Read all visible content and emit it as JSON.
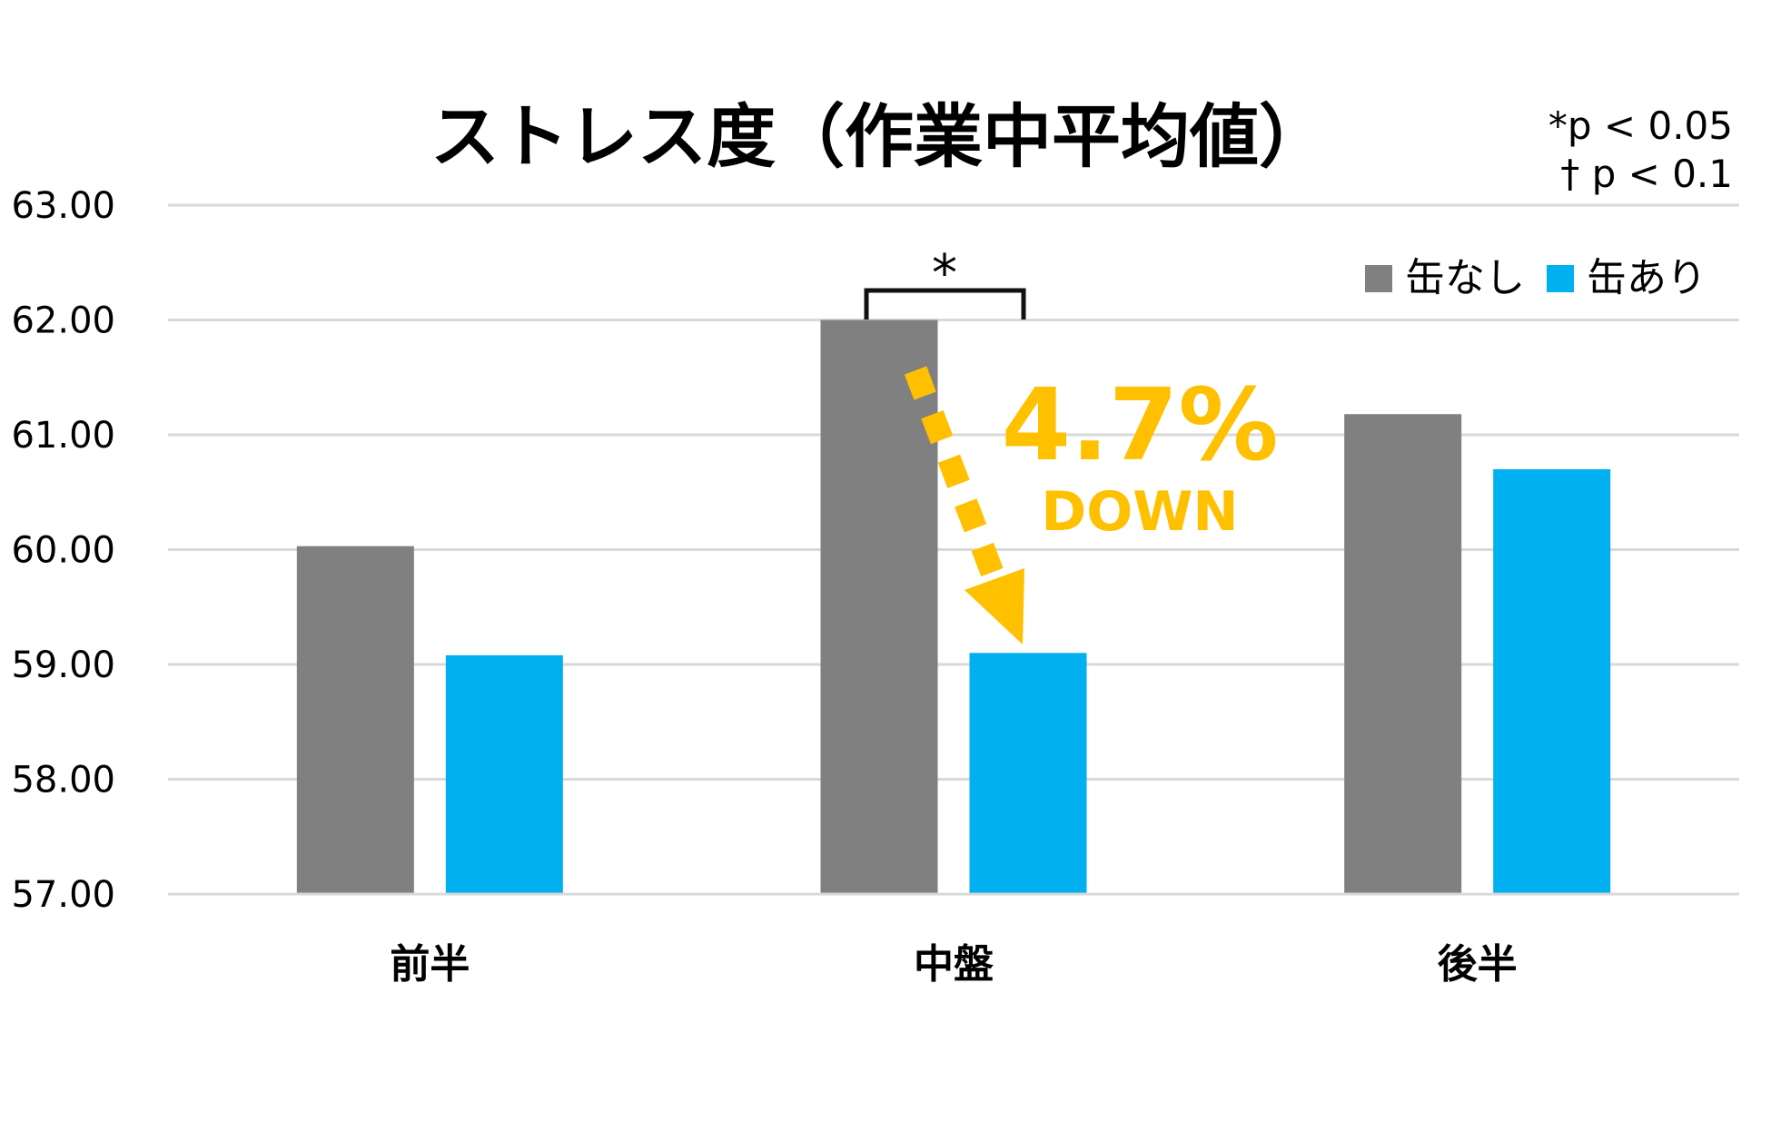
{
  "chart_data": {
    "type": "bar",
    "title": "ストレス度（作業中平均値）",
    "categories": [
      "前半",
      "中盤",
      "後半"
    ],
    "series": [
      {
        "name": "缶なし",
        "color": "#808080",
        "values": [
          60.03,
          62.0,
          61.18
        ]
      },
      {
        "name": "缶あり",
        "color": "#00b0f0",
        "values": [
          59.08,
          59.1,
          60.7
        ]
      }
    ],
    "ylim": [
      57,
      63
    ],
    "yticks": [
      "57.00",
      "58.00",
      "59.00",
      "60.00",
      "61.00",
      "62.00",
      "63.00"
    ],
    "xlabel": "",
    "ylabel": "",
    "grid": true,
    "legend": "top-right",
    "significance_note": [
      "*p < 0.05",
      "† p < 0.1"
    ],
    "annotations": {
      "bracket_label": "*",
      "change_value": "4.7%",
      "change_direction": "DOWN",
      "accent_color": "#ffc000"
    }
  }
}
